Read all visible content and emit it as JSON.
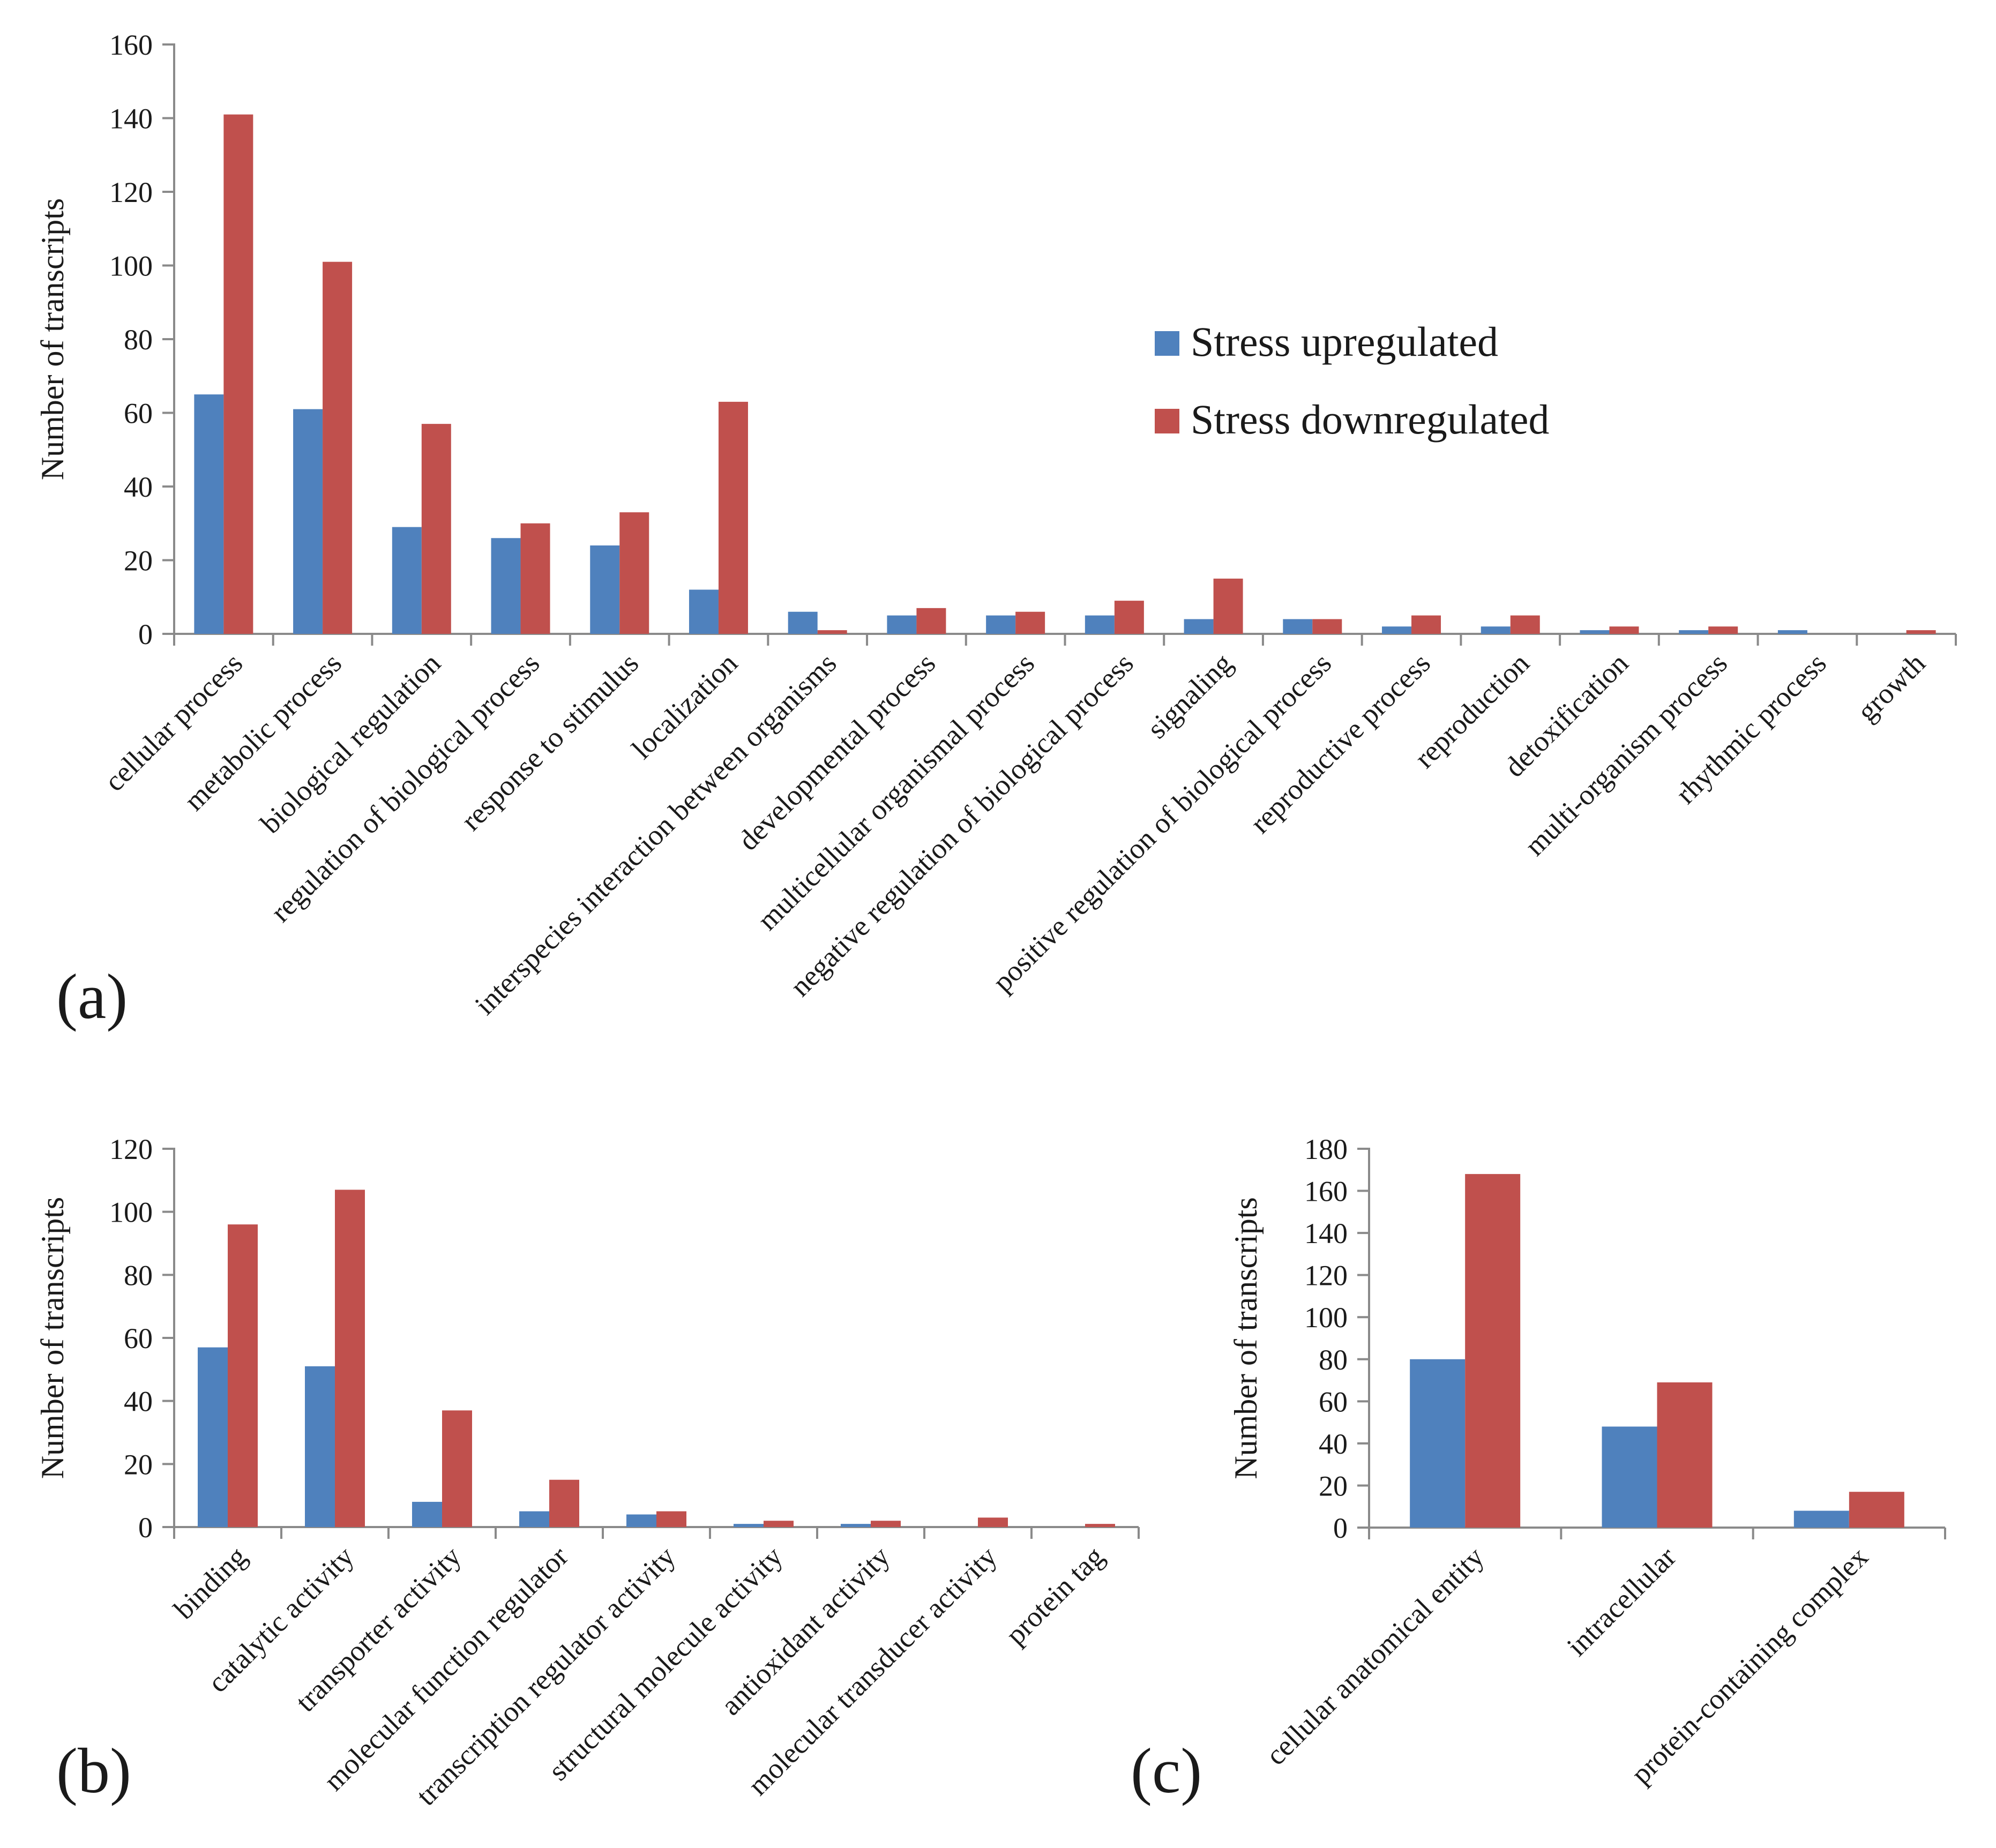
{
  "colors": {
    "upregulated": "#4f81bd",
    "downregulated": "#c0504d"
  },
  "legend": {
    "upregulated": "Stress upregulated",
    "downregulated": "Stress downregulated"
  },
  "chart_data": [
    {
      "id": "a",
      "panel_label": "(a)",
      "type": "bar",
      "ylabel": "Number of transcripts",
      "ylim": [
        0,
        160
      ],
      "yticks": [
        0,
        20,
        40,
        60,
        80,
        100,
        120,
        140,
        160
      ],
      "categories": [
        "cellular process",
        "metabolic process",
        "biological regulation",
        "regulation of biological process",
        "response to stimulus",
        "localization",
        "interspecies interaction between organisms",
        "developmental process",
        "multicellular organismal process",
        "negative regulation of biological process",
        "signaling",
        "positive regulation of biological process",
        "reproductive process",
        "reproduction",
        "detoxification",
        "multi-organism process",
        "rhythmic process",
        "growth"
      ],
      "series": [
        {
          "name": "Stress upregulated",
          "values": [
            65,
            61,
            29,
            26,
            24,
            12,
            6,
            5,
            5,
            5,
            4,
            4,
            2,
            2,
            1,
            1,
            1,
            0
          ]
        },
        {
          "name": "Stress downregulated",
          "values": [
            141,
            101,
            57,
            30,
            33,
            63,
            1,
            7,
            6,
            9,
            15,
            4,
            5,
            5,
            2,
            2,
            0,
            1
          ]
        }
      ]
    },
    {
      "id": "b",
      "panel_label": "(b)",
      "type": "bar",
      "ylabel": "Number of transcripts",
      "ylim": [
        0,
        120
      ],
      "yticks": [
        0,
        20,
        40,
        60,
        80,
        100,
        120
      ],
      "categories": [
        "binding",
        "catalytic activity",
        "transporter activity",
        "molecular function regulator",
        "transcription regulator activity",
        "structural molecule activity",
        "antioxidant activity",
        "molecular transducer activity",
        "protein tag"
      ],
      "series": [
        {
          "name": "Stress upregulated",
          "values": [
            57,
            51,
            8,
            5,
            4,
            1,
            1,
            0,
            0
          ]
        },
        {
          "name": "Stress downregulated",
          "values": [
            96,
            107,
            37,
            15,
            5,
            2,
            2,
            3,
            1
          ]
        }
      ]
    },
    {
      "id": "c",
      "panel_label": "(c)",
      "type": "bar",
      "ylabel": "Number of transcripts",
      "ylim": [
        0,
        180
      ],
      "yticks": [
        0,
        20,
        40,
        60,
        80,
        100,
        120,
        140,
        160,
        180
      ],
      "categories": [
        "cellular anatomical entity",
        "intracellular",
        "protein-containing complex"
      ],
      "series": [
        {
          "name": "Stress upregulated",
          "values": [
            80,
            48,
            8
          ]
        },
        {
          "name": "Stress downregulated",
          "values": [
            168,
            69,
            17
          ]
        }
      ]
    }
  ]
}
